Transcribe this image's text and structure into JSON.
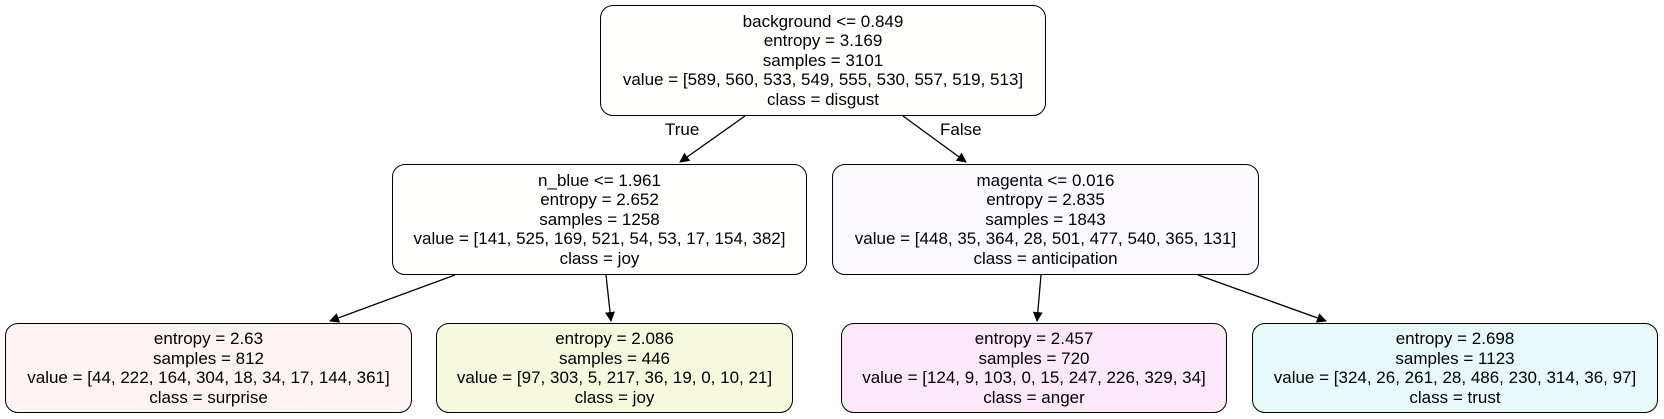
{
  "tree": {
    "nodes": [
      {
        "id": "root",
        "condition": "background <= 0.849",
        "entropy": "entropy = 3.169",
        "samples": "samples = 3101",
        "value": "value = [589, 560, 533, 549, 555, 530, 557, 519, 513]",
        "class": "class = disgust",
        "fill": "#fffffd"
      },
      {
        "id": "n1",
        "condition": "n_blue <= 1.961",
        "entropy": "entropy = 2.652",
        "samples": "samples = 1258",
        "value": "value = [141, 525, 169, 521, 54, 53, 17, 154, 382]",
        "class": "class = joy",
        "fill": "#fffffe"
      },
      {
        "id": "n2",
        "condition": "magenta <= 0.016",
        "entropy": "entropy = 2.835",
        "samples": "samples = 1843",
        "value": "value = [448, 35, 364, 28, 501, 477, 540, 365, 131]",
        "class": "class = anticipation",
        "fill": "#fcfafe"
      },
      {
        "id": "leaf-surprise",
        "entropy": "entropy = 2.63",
        "samples": "samples = 812",
        "value": "value = [44, 222, 164, 304, 18, 34, 17, 144, 361]",
        "class": "class = surprise",
        "fill": "#fdf3f3"
      },
      {
        "id": "leaf-joy",
        "entropy": "entropy = 2.086",
        "samples": "samples = 446",
        "value": "value = [97, 303, 5, 217, 36, 19, 0, 10, 21]",
        "class": "class = joy",
        "fill": "#f6f9dd"
      },
      {
        "id": "leaf-anger",
        "entropy": "entropy = 2.457",
        "samples": "samples = 720",
        "value": "value = [124, 9, 103, 0, 15, 247, 226, 329, 34]",
        "class": "class = anger",
        "fill": "#fbe9f9"
      },
      {
        "id": "leaf-trust",
        "entropy": "entropy = 2.698",
        "samples": "samples = 1123",
        "value": "value = [324, 26, 261, 28, 486, 230, 314, 36, 97]",
        "class": "class = trust",
        "fill": "#e8f9fb"
      }
    ],
    "edge_labels": {
      "true": "True",
      "false": "False"
    }
  }
}
